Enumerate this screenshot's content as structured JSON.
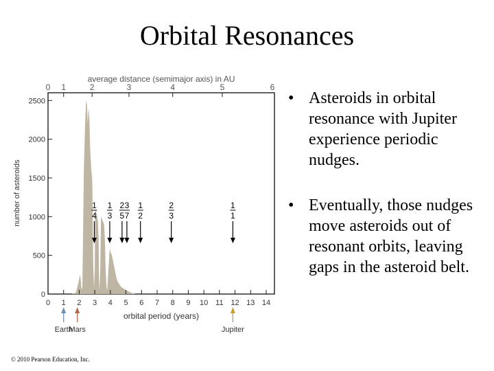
{
  "title": "Orbital Resonances",
  "bullets": [
    "Asteroids in orbital resonance with Jupiter experience periodic nudges.",
    "Eventually, those nudges move asteroids out of resonant orbits, leaving gaps in the asteroid belt."
  ],
  "bullet_symbol": "•",
  "copyright": "© 2010 Pearson Education, Inc.",
  "chart_data": {
    "type": "area",
    "top_axis": {
      "label": "average distance (semimajor axis) in AU",
      "ticks": [
        0,
        1,
        2,
        3,
        4,
        5,
        6
      ]
    },
    "x_axis": {
      "label": "orbital period (years)",
      "ticks": [
        0,
        1,
        2,
        3,
        4,
        5,
        6,
        7,
        8,
        9,
        10,
        11,
        12,
        13,
        14
      ],
      "range": [
        0,
        14
      ]
    },
    "y_axis": {
      "label": "number of asteroids",
      "ticks": [
        0,
        500,
        1000,
        1500,
        2000,
        2500
      ],
      "range": [
        0,
        2600
      ]
    },
    "series": [
      {
        "x": [
          1.5,
          1.8,
          1.95,
          2.05,
          2.1,
          2.15,
          2.2,
          2.25,
          2.3,
          2.35,
          2.4,
          2.45,
          2.5,
          2.52,
          2.55,
          2.6,
          2.65,
          2.7,
          2.75,
          2.8,
          2.82,
          2.85,
          2.9,
          2.95,
          3.0,
          3.02,
          3.05,
          3.1,
          3.15,
          3.2,
          3.25,
          3.27,
          3.3,
          3.35,
          3.4,
          3.5,
          3.6,
          3.65,
          3.7,
          3.75,
          3.8,
          3.9,
          3.96,
          4.0,
          4.1,
          4.2,
          4.3,
          4.4,
          4.5,
          4.7,
          5.0,
          5.2,
          5.3,
          5.45,
          5.6
        ],
        "y": [
          0,
          20,
          150,
          250,
          180,
          60,
          80,
          800,
          1600,
          2000,
          2300,
          2500,
          2450,
          2350,
          2200,
          2400,
          2300,
          1900,
          1700,
          1500,
          1600,
          1300,
          400,
          80,
          300,
          1000,
          1100,
          1050,
          1000,
          950,
          700,
          200,
          50,
          300,
          1000,
          950,
          900,
          700,
          300,
          100,
          50,
          400,
          600,
          550,
          500,
          400,
          300,
          200,
          150,
          90,
          50,
          30,
          20,
          10,
          0
        ]
      }
    ],
    "resonances": [
      {
        "label_top": "1",
        "label_bottom": "4",
        "x": 2.97
      },
      {
        "label_top": "1",
        "label_bottom": "3",
        "x": 3.96
      },
      {
        "label_top": "2",
        "label_bottom": "5",
        "x": 4.75
      },
      {
        "label_top": "3",
        "label_bottom": "7",
        "x": 5.06
      },
      {
        "label_top": "1",
        "label_bottom": "2",
        "x": 5.93
      },
      {
        "label_top": "2",
        "label_bottom": "3",
        "x": 7.91
      },
      {
        "label_top": "1",
        "label_bottom": "1",
        "x": 11.86
      }
    ],
    "planets": [
      {
        "name": "Earth",
        "x": 1.0,
        "color": "#6f8fb5"
      },
      {
        "name": "Mars",
        "x": 1.88,
        "color": "#b06a4a"
      },
      {
        "name": "Jupiter",
        "x": 11.86,
        "color": "#c8a032"
      }
    ],
    "colors": {
      "area": "#bfb5a3",
      "frame": "#1e1e1e",
      "top_axis_text": "#555555",
      "resonance": "#000000"
    },
    "grid": false
  }
}
